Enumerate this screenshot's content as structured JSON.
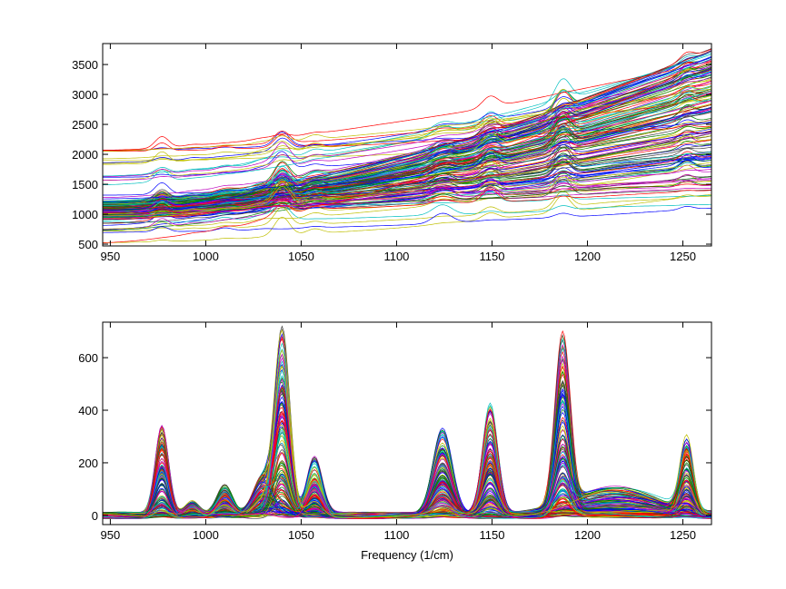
{
  "chart_data": [
    {
      "type": "line",
      "title": "",
      "xlabel": "",
      "ylabel": "",
      "xlim": [
        946,
        1265
      ],
      "ylim": [
        470,
        3850
      ],
      "xticks": [
        "950",
        "1000",
        "1050",
        "1100",
        "1150",
        "1200",
        "1250"
      ],
      "xtick_values": [
        950,
        1000,
        1050,
        1100,
        1150,
        1200,
        1250
      ],
      "yticks": [
        "500",
        "1000",
        "1500",
        "2000",
        "2500",
        "3000",
        "3500"
      ],
      "ytick_values": [
        500,
        1000,
        1500,
        2000,
        2500,
        3000,
        3500
      ],
      "series_count": 160,
      "baseline_start_range": [
        520,
        2100
      ],
      "baseline_end_range": [
        900,
        3800
      ],
      "peak_scale": 0.55,
      "grid": false
    },
    {
      "type": "line",
      "title": "",
      "xlabel": "Frequency (1/cm)",
      "ylabel": "",
      "xlim": [
        946,
        1265
      ],
      "ylim": [
        -35,
        735
      ],
      "xticks": [
        "950",
        "1000",
        "1050",
        "1100",
        "1150",
        "1200",
        "1250"
      ],
      "xtick_values": [
        950,
        1000,
        1050,
        1100,
        1150,
        1200,
        1250
      ],
      "yticks": [
        "0",
        "200",
        "400",
        "600"
      ],
      "ytick_values": [
        0,
        200,
        400,
        600
      ],
      "series_count": 160,
      "peaks": [
        {
          "center": 977,
          "width": 3.5,
          "max_height": 350
        },
        {
          "center": 993,
          "width": 3.5,
          "max_height": 50
        },
        {
          "center": 1010,
          "width": 4,
          "max_height": 110
        },
        {
          "center": 1030,
          "width": 5,
          "max_height": 150
        },
        {
          "center": 1040,
          "width": 4,
          "max_height": 720
        },
        {
          "center": 1057,
          "width": 4,
          "max_height": 230
        },
        {
          "center": 1124,
          "width": 5,
          "max_height": 330
        },
        {
          "center": 1149,
          "width": 4,
          "max_height": 440
        },
        {
          "center": 1187,
          "width": 4,
          "max_height": 690
        },
        {
          "center": 1215,
          "width": 22,
          "max_height": 110
        },
        {
          "center": 1252,
          "width": 3.5,
          "max_height": 290
        }
      ],
      "grid": false
    }
  ],
  "colors": [
    "#0000ff",
    "#008000",
    "#ff0000",
    "#00bfbf",
    "#bf00bf",
    "#bfbf00",
    "#404040"
  ]
}
